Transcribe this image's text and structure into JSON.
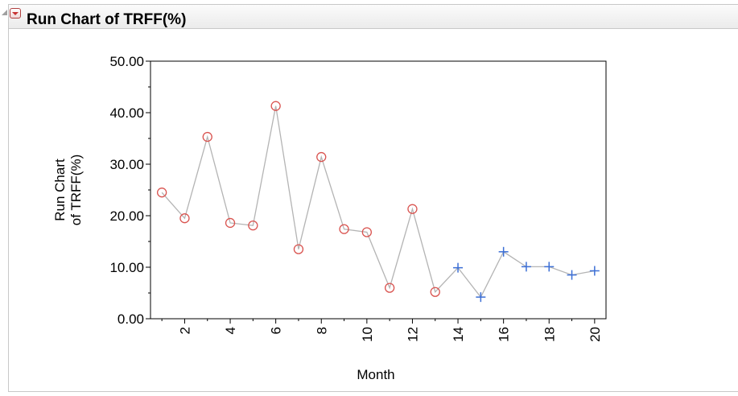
{
  "header": {
    "title": "Run Chart of TRFF(%)"
  },
  "chart_data": {
    "type": "line",
    "xlabel": "Month",
    "ylabel": [
      "Run Chart",
      "of TRFF(%)"
    ],
    "xlim": [
      0.5,
      20.5
    ],
    "ylim": [
      0,
      50
    ],
    "x_ticks": [
      "2",
      "4",
      "6",
      "8",
      "10",
      "12",
      "14",
      "16",
      "18",
      "20"
    ],
    "y_ticks": [
      "0.00",
      "10.00",
      "20.00",
      "30.00",
      "40.00",
      "50.00"
    ],
    "grid": false,
    "series": [
      {
        "marker": "circle",
        "color": "#d9534f",
        "x": [
          1,
          2,
          3,
          4,
          5,
          6,
          7,
          8,
          9,
          10,
          11,
          12,
          13
        ],
        "values": [
          24.5,
          19.5,
          35.3,
          18.6,
          18.1,
          41.3,
          13.5,
          31.4,
          17.4,
          16.8,
          6.0,
          21.3,
          5.2
        ]
      },
      {
        "marker": "plus",
        "color": "#3c6fd6",
        "x": [
          14,
          15,
          16,
          17,
          18,
          19,
          20
        ],
        "values": [
          9.9,
          4.2,
          13.0,
          10.1,
          10.1,
          8.5,
          9.3
        ]
      }
    ],
    "line_color": "#b4b4b4"
  }
}
